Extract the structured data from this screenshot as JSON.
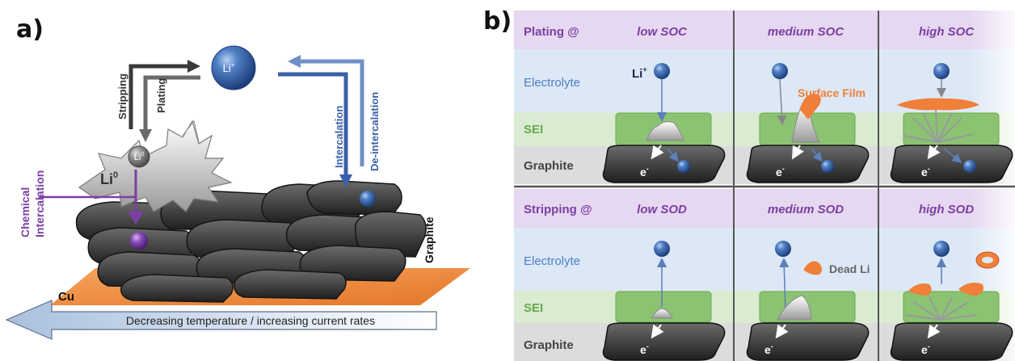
{
  "panel_a": {
    "label": "a)",
    "ion": "Li",
    "ion_sup": "+",
    "stripping": "Stripping",
    "plating": "Plating",
    "intercalation": "Intercalation",
    "deintercalation": "De-intercalation",
    "li0_small": "Li",
    "li0_small_sup": "0",
    "li0_big": "Li",
    "li0_big_sup": "0",
    "chemical": "Chemical",
    "chemical_intercalation": "Intercalation",
    "graphite": "Graphite",
    "cu": "Cu",
    "arrow_text": "Decreasing temperature / increasing current rates",
    "colors": {
      "purple": "#7a3fa3",
      "blue": "#3b5fa8",
      "dark_arrow": "#333333",
      "copper": "#f08a3c",
      "graphite": "#3a3a3a"
    }
  },
  "panel_b": {
    "label": "b)",
    "plating_header": "Plating @",
    "stripping_header": "Stripping @",
    "soc_cols": [
      "low SOC",
      "medium SOC",
      "high SOC"
    ],
    "sod_cols": [
      "low SOD",
      "medium SOD",
      "high SOD"
    ],
    "electrolyte": "Electrolyte",
    "sei": "SEI",
    "graphite": "Graphite",
    "li_ion": "Li",
    "li_ion_sup": "+",
    "electron": "e",
    "electron_sup": "-",
    "surface_film": "Surface Film",
    "dead_li": "Dead Li",
    "colors": {
      "header_bg": "#e6d8f0",
      "electrolyte_bg": "#dce8f6",
      "sei_bg": "#d9ecd2",
      "graphite_bg": "#dcdcdc",
      "purple": "#7a3fa3",
      "blue": "#4f7fc4",
      "green": "#6aa84f",
      "orange": "#f07f3a"
    }
  }
}
